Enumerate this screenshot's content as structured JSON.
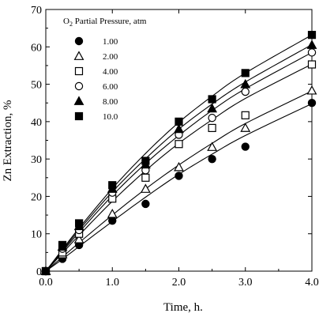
{
  "chart_data": {
    "type": "scatter",
    "xlabel": "Time, h.",
    "ylabel": "Zn Extraction, %",
    "xlim": [
      0,
      4.0
    ],
    "ylim": [
      0,
      70
    ],
    "xticks": [
      0.0,
      1.0,
      2.0,
      3.0,
      4.0
    ],
    "xtick_labels": [
      "0.0",
      "1.0",
      "2.0",
      "3.0",
      "4.0"
    ],
    "yticks": [
      0,
      10,
      20,
      30,
      40,
      50,
      60,
      70
    ],
    "ytick_labels": [
      "0",
      "10",
      "20",
      "30",
      "40",
      "50",
      "60",
      "70"
    ],
    "grid": false,
    "legend": {
      "title_prefix": "O",
      "title_subscript": "2",
      "title_suffix": " Partial Pressure, atm",
      "placement": "top-left"
    },
    "x": [
      0.0,
      0.25,
      0.5,
      1.0,
      1.5,
      2.0,
      2.5,
      3.0,
      4.0
    ],
    "series": [
      {
        "name": "1.00",
        "marker": "filled-circle",
        "values": [
          0,
          3.3,
          7.0,
          13.5,
          18.0,
          25.5,
          30.0,
          33.3,
          45.0
        ],
        "fit": [
          0,
          3.2,
          6.6,
          13.3,
          19.8,
          25.9,
          31.3,
          36.3,
          44.8
        ]
      },
      {
        "name": "2.00",
        "marker": "open-triangle",
        "values": [
          0,
          4.5,
          8.5,
          15.3,
          22.0,
          27.8,
          33.2,
          38.3,
          48.3
        ],
        "fit": [
          0,
          3.8,
          7.6,
          15.0,
          22.0,
          28.4,
          34.2,
          39.5,
          48.2
        ]
      },
      {
        "name": "4.00",
        "marker": "open-square",
        "values": [
          0,
          5.0,
          10.0,
          19.4,
          25.0,
          34.0,
          38.3,
          41.7,
          55.3
        ],
        "fit": [
          0,
          4.8,
          9.6,
          18.7,
          26.9,
          34.2,
          40.5,
          46.2,
          55.4
        ]
      },
      {
        "name": "6.00",
        "marker": "open-circle",
        "values": [
          0,
          6.0,
          11.0,
          21.0,
          27.0,
          36.5,
          41.0,
          48.0,
          58.5
        ],
        "fit": [
          0,
          5.2,
          10.4,
          20.2,
          28.8,
          36.3,
          43.0,
          48.8,
          58.5
        ]
      },
      {
        "name": "8.00",
        "marker": "filled-triangle",
        "values": [
          0,
          6.5,
          12.0,
          22.0,
          28.5,
          38.0,
          43.5,
          50.0,
          60.5
        ],
        "fit": [
          0,
          5.5,
          11.0,
          21.2,
          30.1,
          38.0,
          44.7,
          50.6,
          60.6
        ]
      },
      {
        "name": "10.0",
        "marker": "filled-square",
        "values": [
          0,
          7.0,
          12.8,
          23.0,
          29.5,
          40.0,
          46.0,
          53.0,
          63.2
        ],
        "fit": [
          0,
          5.8,
          11.5,
          22.1,
          31.5,
          39.8,
          46.8,
          53.0,
          63.2
        ]
      }
    ]
  }
}
